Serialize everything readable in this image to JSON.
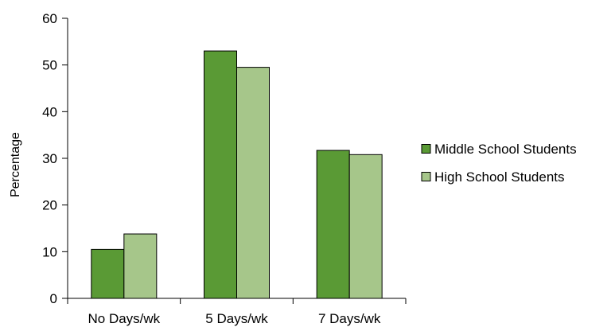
{
  "chart_data": {
    "type": "bar",
    "title": "",
    "xlabel": "",
    "ylabel": "Percentage",
    "ylim": [
      0,
      60
    ],
    "yticks": [
      0,
      10,
      20,
      30,
      40,
      50,
      60
    ],
    "categories": [
      "No Days/wk",
      "5 Days/wk",
      "7 Days/wk"
    ],
    "series": [
      {
        "name": "Middle School Students",
        "color": "#5a9a35",
        "values": [
          10.5,
          53,
          31.7
        ]
      },
      {
        "name": "High School Students",
        "color": "#a6c68a",
        "values": [
          13.8,
          49.5,
          30.8
        ]
      }
    ],
    "grid": false,
    "legend_position": "right"
  }
}
